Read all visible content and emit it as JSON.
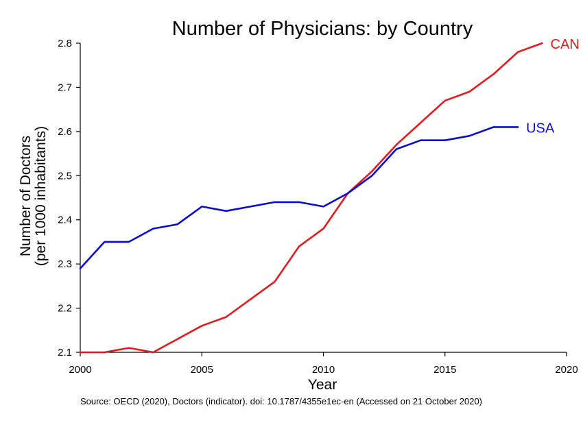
{
  "chart_data": {
    "type": "line",
    "title": "Number of Physicians: by Country",
    "xlabel": "Year",
    "ylabel": [
      "Number of Doctors",
      "(per 1000 inhabitants)"
    ],
    "source_note": "Source: OECD (2020), Doctors (indicator). doi: 10.1787/4355e1ec-en (Accessed on 21 October 2020)",
    "xlim": [
      2000,
      2020
    ],
    "ylim": [
      2.1,
      2.8
    ],
    "xticks": [
      2000,
      2005,
      2010,
      2015,
      2020
    ],
    "yticks": [
      2.1,
      2.2,
      2.3,
      2.4,
      2.5,
      2.6,
      2.7,
      2.8
    ],
    "grid": false,
    "legend": "direct labels at line ends",
    "series": [
      {
        "name": "CAN",
        "color": "#e8191d",
        "x": [
          2000,
          2001,
          2002,
          2003,
          2004,
          2005,
          2006,
          2007,
          2008,
          2009,
          2010,
          2011,
          2012,
          2013,
          2014,
          2015,
          2016,
          2017,
          2018,
          2019
        ],
        "values": [
          2.1,
          2.1,
          2.11,
          2.1,
          2.13,
          2.16,
          2.18,
          2.22,
          2.26,
          2.34,
          2.38,
          2.46,
          2.51,
          2.57,
          2.62,
          2.67,
          2.69,
          2.73,
          2.78,
          2.8
        ]
      },
      {
        "name": "USA",
        "color": "#0a0ad8",
        "x": [
          2000,
          2001,
          2002,
          2003,
          2004,
          2005,
          2006,
          2007,
          2008,
          2009,
          2010,
          2011,
          2012,
          2013,
          2014,
          2015,
          2016,
          2017,
          2018
        ],
        "values": [
          2.29,
          2.35,
          2.35,
          2.38,
          2.39,
          2.43,
          2.42,
          2.43,
          2.44,
          2.44,
          2.43,
          2.46,
          2.5,
          2.56,
          2.58,
          2.58,
          2.59,
          2.61,
          2.61
        ]
      }
    ]
  }
}
